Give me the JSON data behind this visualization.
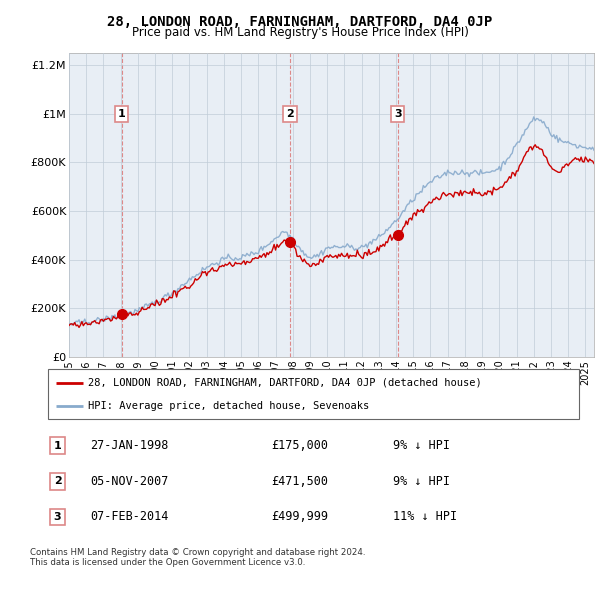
{
  "title": "28, LONDON ROAD, FARNINGHAM, DARTFORD, DA4 0JP",
  "subtitle": "Price paid vs. HM Land Registry's House Price Index (HPI)",
  "legend_line1": "28, LONDON ROAD, FARNINGHAM, DARTFORD, DA4 0JP (detached house)",
  "legend_line2": "HPI: Average price, detached house, Sevenoaks",
  "transactions": [
    {
      "num": 1,
      "date": "27-JAN-1998",
      "price": 175000,
      "pct": "9%",
      "dir": "↓"
    },
    {
      "num": 2,
      "date": "05-NOV-2007",
      "price": 471500,
      "pct": "9%",
      "dir": "↓"
    },
    {
      "num": 3,
      "date": "07-FEB-2014",
      "price": 499999,
      "pct": "11%",
      "dir": "↓"
    }
  ],
  "transaction_dates_decimal": [
    1998.07,
    2007.84,
    2014.1
  ],
  "transaction_prices": [
    175000,
    471500,
    499999
  ],
  "footnote1": "Contains HM Land Registry data © Crown copyright and database right 2024.",
  "footnote2": "This data is licensed under the Open Government Licence v3.0.",
  "line_color_red": "#cc0000",
  "line_color_blue": "#88aacc",
  "vline_color": "#dd8888",
  "background_color": "#ffffff",
  "chart_bg_color": "#e8eef5",
  "grid_color": "#c0ccd8",
  "ylim": [
    0,
    1250000
  ],
  "xlim_start": 1995.0,
  "xlim_end": 2025.5,
  "hpi_base": {
    "1995.0": 135000,
    "1996.0": 143000,
    "1997.0": 155000,
    "1998.0": 172000,
    "1999.0": 192000,
    "2000.0": 225000,
    "2001.0": 265000,
    "2002.0": 320000,
    "2003.0": 370000,
    "2004.0": 405000,
    "2005.0": 410000,
    "2006.0": 435000,
    "2007.0": 490000,
    "2007.5": 520000,
    "2008.0": 490000,
    "2008.5": 440000,
    "2009.0": 410000,
    "2009.5": 420000,
    "2010.0": 450000,
    "2011.0": 455000,
    "2012.0": 450000,
    "2013.0": 490000,
    "2014.0": 560000,
    "2015.0": 650000,
    "2016.0": 720000,
    "2017.0": 760000,
    "2018.0": 760000,
    "2019.0": 755000,
    "2020.0": 775000,
    "2020.5": 820000,
    "2021.0": 870000,
    "2021.5": 930000,
    "2022.0": 980000,
    "2022.5": 970000,
    "2023.0": 920000,
    "2023.5": 890000,
    "2024.0": 880000,
    "2024.5": 870000,
    "2025.0": 860000
  },
  "prop_base": {
    "1995.0": 128000,
    "1996.0": 136000,
    "1997.0": 148000,
    "1998.0": 165000,
    "1999.0": 185000,
    "2000.0": 215000,
    "2001.0": 250000,
    "2002.0": 300000,
    "2003.0": 348000,
    "2004.0": 378000,
    "2005.0": 383000,
    "2006.0": 405000,
    "2007.0": 450000,
    "2007.5": 475000,
    "2008.0": 450000,
    "2008.5": 400000,
    "2009.0": 375000,
    "2009.5": 385000,
    "2010.0": 415000,
    "2011.0": 420000,
    "2012.0": 415000,
    "2013.0": 445000,
    "2014.0": 510000,
    "2015.0": 580000,
    "2016.0": 640000,
    "2017.0": 670000,
    "2018.0": 680000,
    "2019.0": 675000,
    "2020.0": 695000,
    "2020.5": 730000,
    "2021.0": 770000,
    "2021.5": 830000,
    "2022.0": 870000,
    "2022.5": 850000,
    "2023.0": 790000,
    "2023.5": 760000,
    "2024.0": 800000,
    "2024.5": 820000,
    "2025.0": 810000
  }
}
